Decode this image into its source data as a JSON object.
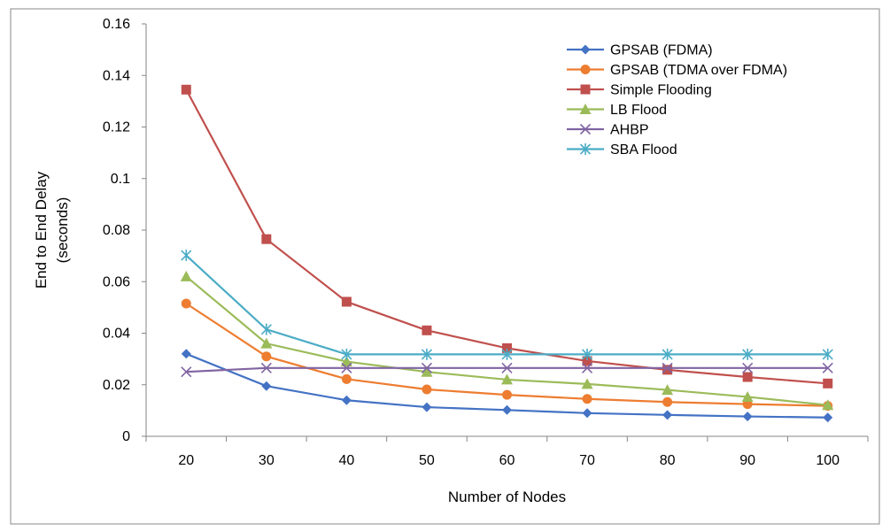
{
  "chart_data": {
    "type": "line",
    "x": [
      20,
      30,
      40,
      50,
      60,
      70,
      80,
      90,
      100
    ],
    "xlabel": "Number of Nodes",
    "ylabel_lines": [
      "End to End Delay",
      "(seconds)"
    ],
    "ylim": [
      0,
      0.16
    ],
    "yticks": [
      "0",
      "0.02",
      "0.04",
      "0.06",
      "0.08",
      "0.1",
      "0.12",
      "0.14",
      "0.16"
    ],
    "xticks": [
      "20",
      "30",
      "40",
      "50",
      "60",
      "70",
      "80",
      "90",
      "100"
    ],
    "grid": false,
    "legend_position": "top-right",
    "series": [
      {
        "name": "GPSAB (FDMA)",
        "color": "#4472C4",
        "marker": "diamond",
        "values": [
          0.032,
          0.0195,
          0.014,
          0.0113,
          0.0102,
          0.009,
          0.0083,
          0.0077,
          0.0073
        ]
      },
      {
        "name": "GPSAB (TDMA over FDMA)",
        "color": "#ED7D31",
        "marker": "circle",
        "values": [
          0.0515,
          0.031,
          0.0222,
          0.0182,
          0.0161,
          0.0145,
          0.0133,
          0.0125,
          0.0118
        ]
      },
      {
        "name": "Simple Flooding",
        "color": "#C0504D",
        "marker": "square",
        "values": [
          0.1345,
          0.0765,
          0.0522,
          0.0411,
          0.0342,
          0.0292,
          0.0258,
          0.023,
          0.0205
        ]
      },
      {
        "name": "LB Flood",
        "color": "#9BBB59",
        "marker": "triangle",
        "values": [
          0.062,
          0.036,
          0.029,
          0.025,
          0.022,
          0.0203,
          0.018,
          0.0153,
          0.0121
        ]
      },
      {
        "name": "AHBP",
        "color": "#8064A2",
        "marker": "x",
        "values": [
          0.025,
          0.0265,
          0.0265,
          0.0265,
          0.0265,
          0.0265,
          0.0265,
          0.0265,
          0.0265
        ]
      },
      {
        "name": "SBA Flood",
        "color": "#4BACC6",
        "marker": "star",
        "values": [
          0.0702,
          0.0415,
          0.0318,
          0.0318,
          0.0318,
          0.0318,
          0.0318,
          0.0318,
          0.0318
        ]
      }
    ]
  }
}
